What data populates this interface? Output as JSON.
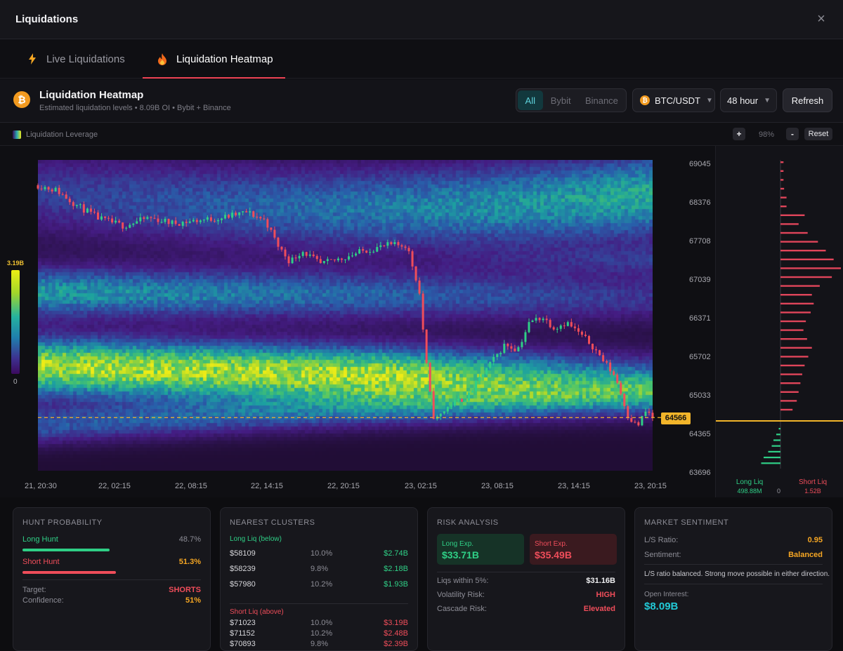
{
  "window": {
    "title": "Liquidations",
    "close_icon": "×"
  },
  "tabs": [
    {
      "label": "Live Liquidations",
      "icon": "lightning-icon"
    },
    {
      "label": "Liquidation Heatmap",
      "icon": "fire-icon"
    }
  ],
  "header": {
    "title": "Liquidation Heatmap",
    "subtitle": "Estimated liquidation levels • 8.09B OI • Bybit + Binance",
    "coin_glyph": "₿",
    "sources": [
      "All",
      "Bybit",
      "Binance"
    ],
    "pair": "BTC/USDT",
    "period": "48 hour",
    "caret": "▼",
    "refresh_label": "Refresh"
  },
  "toolbar": {
    "legend_label": "Liquidation Leverage",
    "zoom_in": "+",
    "zoom_level": "98%",
    "zoom_out": "-",
    "reset_label": "Reset"
  },
  "colorbar": {
    "max_label": "3.19B",
    "min_label": "0"
  },
  "chart_data": {
    "type": "heatmap",
    "title": "",
    "y_ticks": [
      "69045",
      "68376",
      "67708",
      "67039",
      "66371",
      "65702",
      "65033",
      "64365",
      "63696"
    ],
    "x_ticks": [
      "21, 20:30",
      "22, 02:15",
      "22, 08:15",
      "22, 14:15",
      "22, 20:15",
      "23, 02:15",
      "23, 08:15",
      "23, 14:15",
      "23, 20:15"
    ],
    "ylim": [
      63600,
      69250
    ],
    "current_price": 64566,
    "price_path": [
      {
        "t": 0.0,
        "p": 68790
      },
      {
        "t": 0.03,
        "p": 68700
      },
      {
        "t": 0.06,
        "p": 68450
      },
      {
        "t": 0.1,
        "p": 68180
      },
      {
        "t": 0.14,
        "p": 68050
      },
      {
        "t": 0.18,
        "p": 68200
      },
      {
        "t": 0.22,
        "p": 68100
      },
      {
        "t": 0.26,
        "p": 68150
      },
      {
        "t": 0.3,
        "p": 68200
      },
      {
        "t": 0.34,
        "p": 68300
      },
      {
        "t": 0.37,
        "p": 68150
      },
      {
        "t": 0.39,
        "p": 67700
      },
      {
        "t": 0.41,
        "p": 67400
      },
      {
        "t": 0.43,
        "p": 67600
      },
      {
        "t": 0.46,
        "p": 67350
      },
      {
        "t": 0.49,
        "p": 67450
      },
      {
        "t": 0.53,
        "p": 67600
      },
      {
        "t": 0.57,
        "p": 67700
      },
      {
        "t": 0.6,
        "p": 67700
      },
      {
        "t": 0.62,
        "p": 66900
      },
      {
        "t": 0.635,
        "p": 65200
      },
      {
        "t": 0.645,
        "p": 64500
      },
      {
        "t": 0.67,
        "p": 64800
      },
      {
        "t": 0.7,
        "p": 64950
      },
      {
        "t": 0.72,
        "p": 65300
      },
      {
        "t": 0.74,
        "p": 65600
      },
      {
        "t": 0.76,
        "p": 65900
      },
      {
        "t": 0.78,
        "p": 65800
      },
      {
        "t": 0.8,
        "p": 66300
      },
      {
        "t": 0.82,
        "p": 66400
      },
      {
        "t": 0.84,
        "p": 66200
      },
      {
        "t": 0.86,
        "p": 66300
      },
      {
        "t": 0.88,
        "p": 66100
      },
      {
        "t": 0.9,
        "p": 65900
      },
      {
        "t": 0.92,
        "p": 65600
      },
      {
        "t": 0.94,
        "p": 65300
      },
      {
        "t": 0.96,
        "p": 64600
      },
      {
        "t": 0.975,
        "p": 64400
      },
      {
        "t": 0.99,
        "p": 64700
      },
      {
        "t": 1.0,
        "p": 64566
      }
    ]
  },
  "sidebar_chart": {
    "long_label": "Long Liq",
    "long_value": "498.88M",
    "zero_label": "0",
    "short_label": "Short Liq",
    "short_value": "1.52B",
    "short_bars": [
      0.05,
      0.05,
      0.05,
      0.06,
      0.1,
      0.1,
      0.4,
      0.3,
      0.45,
      0.62,
      0.75,
      0.88,
      1.0,
      0.85,
      0.65,
      0.52,
      0.55,
      0.5,
      0.42,
      0.38,
      0.44,
      0.52,
      0.46,
      0.4,
      0.36,
      0.33,
      0.3,
      0.27,
      0.2
    ],
    "long_bars": [
      0.05,
      0.12,
      0.2,
      0.25,
      0.35,
      0.48,
      0.55
    ]
  },
  "hunt": {
    "title": "HUNT PROBABILITY",
    "long_label": "Long Hunt",
    "long_pct": "48.7%",
    "long_value": 0.487,
    "short_label": "Short Hunt",
    "short_pct": "51.3%",
    "short_value": 0.513,
    "target_label": "Target:",
    "target_value": "SHORTS",
    "confidence_label": "Confidence:",
    "confidence_value": "51%"
  },
  "clusters": {
    "title": "NEAREST CLUSTERS",
    "long_header": "Long Liq (below)",
    "long_rows": [
      {
        "price": "$58109",
        "pct": "10.0%",
        "value": "$2.74B"
      },
      {
        "price": "$58239",
        "pct": "9.8%",
        "value": "$2.18B"
      },
      {
        "price": "$57980",
        "pct": "10.2%",
        "value": "$1.93B"
      }
    ],
    "short_header": "Short Liq (above)",
    "short_rows": [
      {
        "price": "$71023",
        "pct": "10.0%",
        "value": "$3.19B"
      },
      {
        "price": "$71152",
        "pct": "10.2%",
        "value": "$2.48B"
      },
      {
        "price": "$70893",
        "pct": "9.8%",
        "value": "$2.39B"
      }
    ]
  },
  "risk": {
    "title": "RISK ANALYSIS",
    "long_exp_label": "Long Exp.",
    "long_exp_value": "$33.71B",
    "short_exp_label": "Short Exp.",
    "short_exp_value": "$35.49B",
    "within_label": "Liqs within 5%:",
    "within_value": "$31.16B",
    "vol_label": "Volatility Risk:",
    "vol_value": "HIGH",
    "cascade_label": "Cascade Risk:",
    "cascade_value": "Elevated"
  },
  "sentiment": {
    "title": "MARKET SENTIMENT",
    "ratio_label": "L/S Ratio:",
    "ratio_value": "0.95",
    "sent_label": "Sentiment:",
    "sent_value": "Balanced",
    "note": "L/S ratio balanced. Strong move possible in either direction.",
    "oi_label": "Open Interest:",
    "oi_value": "$8.09B"
  },
  "colors": {
    "long": "#2fcf86",
    "short": "#ef4d5a",
    "accent": "#f2b52a",
    "cyan": "#22c9d6"
  }
}
